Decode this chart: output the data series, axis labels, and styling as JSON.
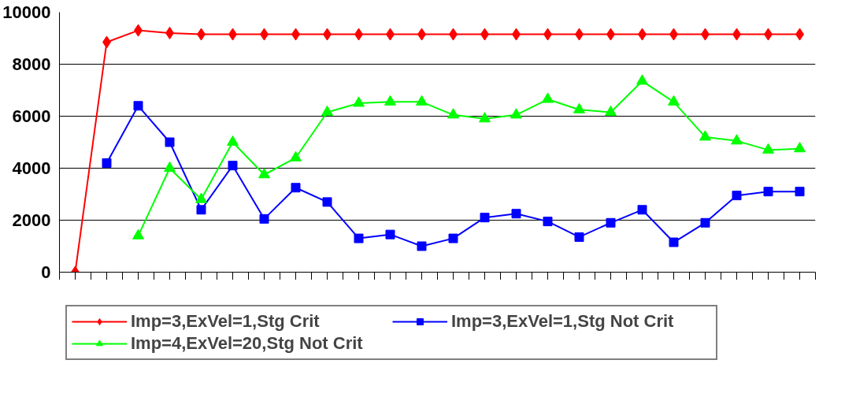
{
  "chart_data": {
    "type": "line",
    "categories": [
      null,
      null,
      null,
      null,
      null,
      null,
      null,
      null,
      null,
      null,
      null,
      null,
      null,
      null,
      null,
      null,
      null,
      null,
      null,
      null,
      null,
      null,
      null,
      null
    ],
    "ylim": [
      0,
      10000
    ],
    "yticks": [
      0,
      2000,
      4000,
      6000,
      8000,
      10000
    ],
    "grid": "y",
    "legend": "bottom",
    "line_style": "solid",
    "series": [
      {
        "name": "Imp=3,ExVel=1,Stg Crit",
        "color": "#ff0000",
        "marker": "diamond",
        "values": [
          0,
          8850,
          9300,
          9200,
          9150,
          9150,
          9150,
          9150,
          9150,
          9150,
          9150,
          9150,
          9150,
          9150,
          9150,
          9150,
          9150,
          9150,
          9150,
          9150,
          9150,
          9150,
          9150,
          9150
        ]
      },
      {
        "name": "Imp=3,ExVel=1,Stg Not Crit",
        "color": "#0000ff",
        "marker": "square",
        "values": [
          null,
          4200,
          6400,
          5000,
          2400,
          4100,
          2050,
          3250,
          2700,
          1300,
          1450,
          1000,
          1300,
          2100,
          2250,
          1950,
          1350,
          1900,
          2400,
          1150,
          1900,
          2950,
          3100,
          3100
        ]
      },
      {
        "name": "Imp=4,ExVel=20,Stg Not Crit",
        "color": "#00ff00",
        "marker": "triangle",
        "values": [
          null,
          null,
          1400,
          4000,
          2800,
          5000,
          3750,
          4400,
          6150,
          6500,
          6550,
          6550,
          6050,
          5900,
          6050,
          6650,
          6250,
          6150,
          7350,
          6550,
          5200,
          5050,
          4700,
          4750
        ]
      }
    ]
  }
}
